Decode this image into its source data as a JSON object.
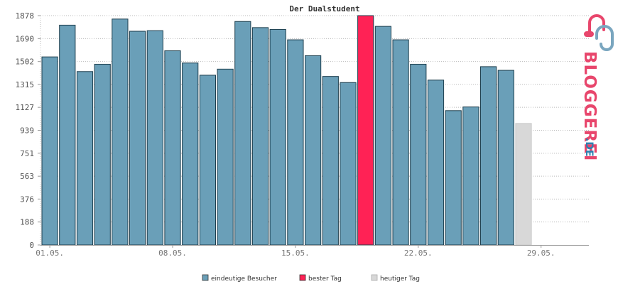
{
  "chart_data": {
    "type": "bar",
    "title": "Der Dualstudent",
    "y_ticks": [
      "0",
      "188",
      "376",
      "563",
      "751",
      "939",
      "1127",
      "1315",
      "1502",
      "1690",
      "1878"
    ],
    "ylim": [
      0,
      1878
    ],
    "x_tick_labels": [
      "01.05.",
      "08.05.",
      "15.05.",
      "22.05.",
      "29.05."
    ],
    "x_tick_days": [
      1,
      8,
      15,
      22,
      29
    ],
    "days_total": 31,
    "categories": [
      "01.05.",
      "02.05.",
      "03.05.",
      "04.05.",
      "05.05.",
      "06.05.",
      "07.05.",
      "08.05.",
      "09.05.",
      "10.05.",
      "11.05.",
      "12.05.",
      "13.05.",
      "14.05.",
      "15.05.",
      "16.05.",
      "17.05.",
      "18.05.",
      "19.05.",
      "20.05.",
      "21.05.",
      "22.05.",
      "23.05.",
      "24.05.",
      "25.05.",
      "26.05.",
      "27.05.",
      "28.05."
    ],
    "values": [
      1540,
      1800,
      1420,
      1480,
      1850,
      1750,
      1755,
      1590,
      1490,
      1390,
      1440,
      1830,
      1780,
      1765,
      1680,
      1550,
      1380,
      1330,
      1878,
      1790,
      1680,
      1480,
      1350,
      1100,
      1130,
      1460,
      1430,
      995
    ],
    "bar_kinds": [
      "unique",
      "unique",
      "unique",
      "unique",
      "unique",
      "unique",
      "unique",
      "unique",
      "unique",
      "unique",
      "unique",
      "unique",
      "unique",
      "unique",
      "unique",
      "unique",
      "unique",
      "unique",
      "best",
      "unique",
      "unique",
      "unique",
      "unique",
      "unique",
      "unique",
      "unique",
      "unique",
      "today"
    ],
    "grid": true,
    "legend_position": "bottom-center",
    "legend": [
      {
        "key": "unique",
        "label": "eindeutige Besucher",
        "color": "#6a9fb8"
      },
      {
        "key": "best",
        "label": "bester Tag",
        "color": "#ff2255"
      },
      {
        "key": "today",
        "label": "heutiger Tag",
        "color": "#d8d8d8"
      }
    ]
  },
  "logo": {
    "text": "BLOGGEREI",
    "suffix": ".DE",
    "colors": {
      "primary": "#e8466c",
      "secondary": "#2e7fb0"
    }
  }
}
